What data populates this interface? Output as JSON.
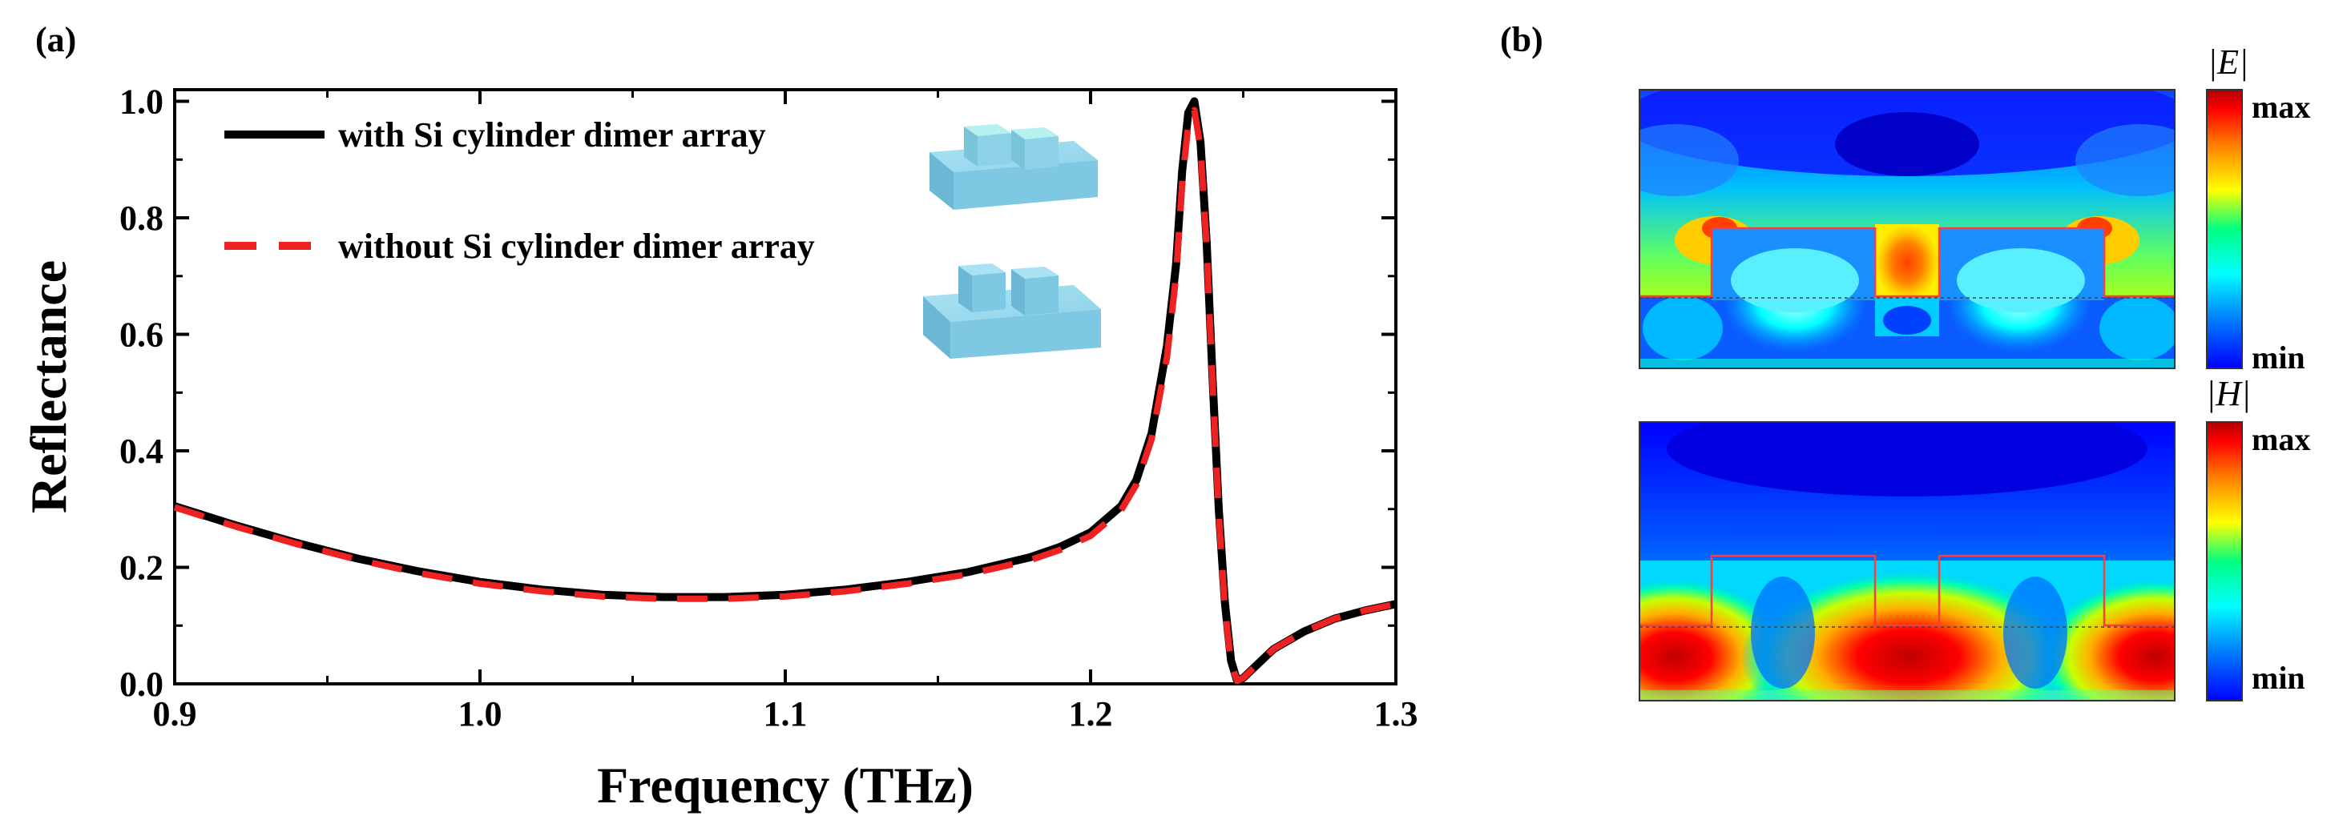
{
  "panel_a_label": "(a)",
  "panel_b_label": "(b)",
  "chart_data": {
    "type": "line",
    "title": "",
    "xlabel": "Frequency (THz)",
    "ylabel": "Reflectance",
    "xlim": [
      0.9,
      1.3
    ],
    "ylim": [
      0.0,
      1.02
    ],
    "xticks": [
      0.9,
      1.0,
      1.1,
      1.2,
      1.3
    ],
    "xtick_labels": [
      "0.9",
      "1.0",
      "1.1",
      "1.2",
      "1.3"
    ],
    "yticks": [
      0.0,
      0.2,
      0.4,
      0.6,
      0.8,
      1.0
    ],
    "ytick_labels": [
      "0.0",
      "0.2",
      "0.4",
      "0.6",
      "0.8",
      "1.0"
    ],
    "legend_position": "top-left",
    "series": [
      {
        "name": "with Si cylinder dimer array",
        "color": "#000000",
        "style": "solid",
        "x": [
          0.9,
          0.92,
          0.94,
          0.96,
          0.98,
          1.0,
          1.02,
          1.04,
          1.06,
          1.08,
          1.1,
          1.12,
          1.14,
          1.16,
          1.18,
          1.19,
          1.2,
          1.21,
          1.215,
          1.22,
          1.225,
          1.228,
          1.23,
          1.232,
          1.234,
          1.236,
          1.238,
          1.24,
          1.242,
          1.244,
          1.246,
          1.248,
          1.25,
          1.255,
          1.26,
          1.27,
          1.28,
          1.29,
          1.3
        ],
        "y": [
          0.305,
          0.272,
          0.242,
          0.215,
          0.193,
          0.175,
          0.162,
          0.153,
          0.149,
          0.149,
          0.153,
          0.162,
          0.175,
          0.192,
          0.217,
          0.235,
          0.26,
          0.305,
          0.35,
          0.43,
          0.58,
          0.72,
          0.88,
          0.98,
          1.0,
          0.93,
          0.76,
          0.52,
          0.3,
          0.14,
          0.04,
          0.005,
          0.01,
          0.035,
          0.06,
          0.09,
          0.112,
          0.126,
          0.137
        ]
      },
      {
        "name": "without Si cylinder dimer array",
        "color": "#ee2222",
        "style": "dashed",
        "x": [
          0.9,
          0.92,
          0.94,
          0.96,
          0.98,
          1.0,
          1.02,
          1.04,
          1.06,
          1.08,
          1.1,
          1.12,
          1.14,
          1.16,
          1.18,
          1.19,
          1.2,
          1.21,
          1.215,
          1.22,
          1.225,
          1.228,
          1.23,
          1.232,
          1.234,
          1.236,
          1.238,
          1.24,
          1.242,
          1.244,
          1.246,
          1.248,
          1.25,
          1.255,
          1.26,
          1.27,
          1.28,
          1.29,
          1.3
        ],
        "y": [
          0.303,
          0.27,
          0.24,
          0.213,
          0.19,
          0.172,
          0.159,
          0.15,
          0.146,
          0.146,
          0.15,
          0.159,
          0.172,
          0.188,
          0.212,
          0.23,
          0.254,
          0.298,
          0.342,
          0.42,
          0.56,
          0.7,
          0.86,
          0.96,
          0.985,
          0.92,
          0.75,
          0.51,
          0.29,
          0.13,
          0.035,
          0.005,
          0.01,
          0.035,
          0.06,
          0.09,
          0.112,
          0.126,
          0.137
        ]
      }
    ]
  },
  "field_maps": {
    "e_field": {
      "label": "|E|",
      "max_label": "max",
      "min_label": "min"
    },
    "h_field": {
      "label": "|H|",
      "max_label": "max",
      "min_label": "min"
    }
  },
  "colors": {
    "colormap": [
      "#0000ff",
      "#0080ff",
      "#00ffff",
      "#00ff80",
      "#ffff00",
      "#ff8000",
      "#ff0000",
      "#b00000"
    ],
    "structure_outline": "#ff3b3b",
    "inset_block": "#7ec8e3"
  }
}
